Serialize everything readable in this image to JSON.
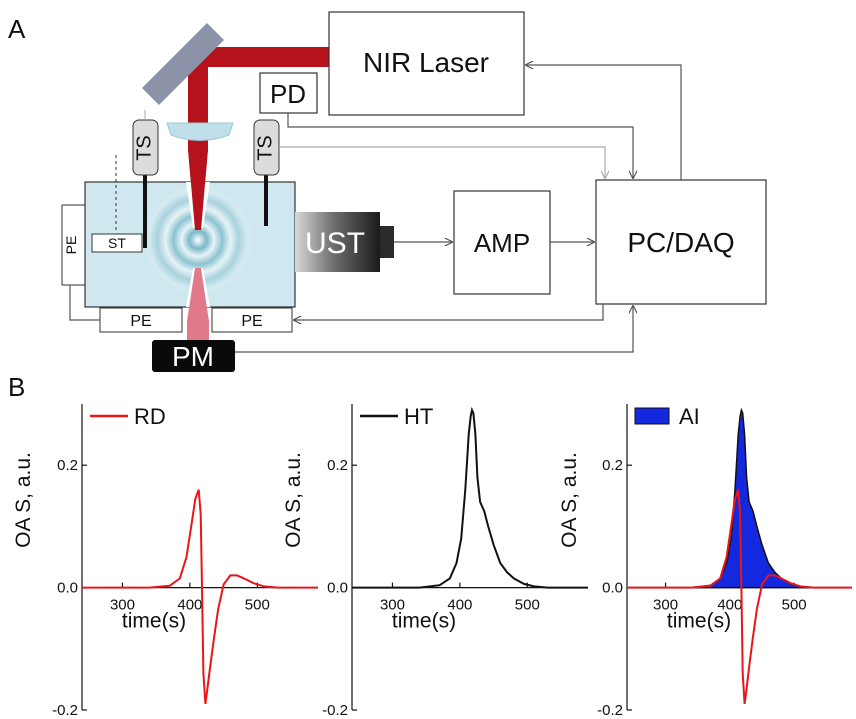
{
  "panel_a": {
    "label": "A",
    "boxes": {
      "laser": "NIR Laser",
      "pd": "PD",
      "pcdaq": "PC/DAQ",
      "amp": "AMP",
      "ust": "UST",
      "pm": "PM",
      "ts_left": "TS",
      "ts_right": "TS",
      "st": "ST",
      "pe_left": "PE",
      "pe_bottom_left": "PE",
      "pe_bottom_right": "PE"
    },
    "colors": {
      "beam": "#b5121b",
      "beam_lower": "#e07a8a",
      "chamber": "#cfe8f0",
      "mirror": "#8c93a8",
      "lens": "#bfe0ea",
      "ust_dark": "#1a1a1a"
    }
  },
  "panel_b": {
    "label": "B",
    "ylabel": "OA S, a.u.",
    "xlabel": "time(s)",
    "legend_fill_color": "#1428e0"
  },
  "chart_data": [
    {
      "type": "line",
      "legend": "RD",
      "color": "#e8161b",
      "xlabel": "time(s)",
      "ylabel": "OA S, a.u.",
      "xlim": [
        240,
        590
      ],
      "ylim": [
        -0.2,
        0.3
      ],
      "xticks": [
        300,
        400,
        500
      ],
      "yticks": [
        -0.2,
        0.0,
        0.2
      ],
      "ytick_labels": [
        "-0.2",
        "0.0",
        "0.2"
      ],
      "series": [
        {
          "name": "RD",
          "x": [
            240,
            300,
            340,
            370,
            385,
            395,
            402,
            408,
            413,
            416,
            418,
            420,
            423,
            426,
            430,
            436,
            442,
            450,
            460,
            470,
            480,
            495,
            510,
            530,
            560,
            590
          ],
          "y": [
            0.0,
            0.0,
            0.0,
            0.003,
            0.015,
            0.05,
            0.1,
            0.145,
            0.16,
            0.12,
            0.0,
            -0.14,
            -0.19,
            -0.165,
            -0.13,
            -0.08,
            -0.035,
            0.005,
            0.02,
            0.02,
            0.015,
            0.007,
            0.002,
            0.0,
            0.0,
            0.0
          ]
        }
      ]
    },
    {
      "type": "line",
      "legend": "HT",
      "color": "#111111",
      "xlabel": "time(s)",
      "ylabel": "OA S, a.u.",
      "xlim": [
        240,
        590
      ],
      "ylim": [
        -0.2,
        0.3
      ],
      "xticks": [
        300,
        400,
        500
      ],
      "yticks": [
        -0.2,
        0.0,
        0.2
      ],
      "ytick_labels": [
        "-0.2",
        "0.0",
        "0.2"
      ],
      "series": [
        {
          "name": "HT",
          "x": [
            240,
            300,
            340,
            370,
            385,
            395,
            402,
            408,
            413,
            416,
            418,
            420,
            423,
            426,
            430,
            436,
            442,
            450,
            460,
            470,
            480,
            495,
            510,
            530,
            560,
            590
          ],
          "y": [
            0.0,
            0.0,
            0.0,
            0.004,
            0.015,
            0.04,
            0.08,
            0.16,
            0.25,
            0.28,
            0.29,
            0.285,
            0.25,
            0.18,
            0.14,
            0.125,
            0.1,
            0.07,
            0.04,
            0.025,
            0.015,
            0.006,
            0.002,
            0.0,
            0.0,
            0.0
          ]
        }
      ]
    },
    {
      "type": "area",
      "legend": "AI",
      "fill": "#1428e0",
      "xlabel": "time(s)",
      "ylabel": "OA S, a.u.",
      "xlim": [
        240,
        590
      ],
      "ylim": [
        -0.2,
        0.3
      ],
      "xticks": [
        300,
        400,
        500
      ],
      "yticks": [
        -0.2,
        0.0,
        0.2
      ],
      "ytick_labels": [
        "-0.2",
        "0.0",
        "0.2"
      ],
      "series": [
        {
          "name": "AI",
          "x": [
            240,
            300,
            340,
            370,
            385,
            395,
            402,
            408,
            413,
            416,
            418,
            420,
            423,
            426,
            430,
            436,
            442,
            450,
            460,
            470,
            480,
            495,
            510,
            530,
            560,
            590
          ],
          "y": [
            0.0,
            0.0,
            0.0,
            0.004,
            0.015,
            0.04,
            0.08,
            0.16,
            0.25,
            0.28,
            0.29,
            0.285,
            0.25,
            0.18,
            0.14,
            0.125,
            0.1,
            0.07,
            0.04,
            0.025,
            0.015,
            0.006,
            0.002,
            0.0,
            0.0,
            0.0
          ]
        }
      ]
    }
  ]
}
